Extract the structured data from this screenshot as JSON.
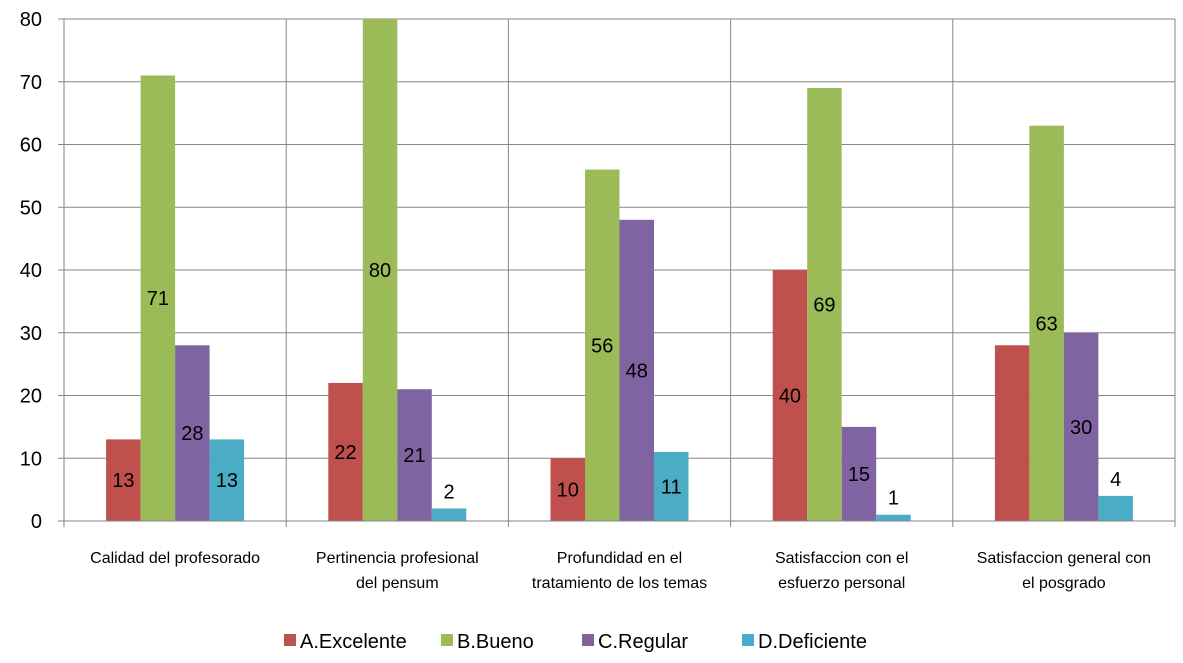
{
  "chart_data": {
    "type": "bar",
    "title": "",
    "xlabel": "",
    "ylabel": "",
    "ylim": [
      0,
      80
    ],
    "yticks": [
      0,
      10,
      20,
      30,
      40,
      50,
      60,
      70,
      80
    ],
    "grid": true,
    "legend_position": "bottom",
    "categories": [
      [
        "Calidad del profesorado"
      ],
      [
        "Pertinencia profesional",
        "del pensum"
      ],
      [
        "Profundidad en el",
        "tratamiento de los temas"
      ],
      [
        "Satisfaccion con el",
        "esfuerzo personal"
      ],
      [
        "Satisfaccion general con",
        "el posgrado"
      ]
    ],
    "series": [
      {
        "name": "A.Excelente",
        "color": "#c0504d",
        "values": [
          13,
          22,
          10,
          40,
          28
        ],
        "labels": [
          "13",
          "22",
          "10",
          "40",
          "28"
        ]
      },
      {
        "name": "B.Bueno",
        "color": "#9bbb59",
        "values": [
          71,
          80,
          56,
          69,
          63
        ],
        "labels": [
          "71",
          "80",
          "56",
          "69",
          "63"
        ]
      },
      {
        "name": "C.Regular",
        "color": "#8064a2",
        "values": [
          28,
          21,
          48,
          15,
          30
        ],
        "labels": [
          "28",
          "21",
          "48",
          "15",
          "30"
        ]
      },
      {
        "name": "D.Deficiente",
        "color": "#4bacc6",
        "values": [
          13,
          2,
          11,
          1,
          4
        ],
        "labels": [
          "13",
          "2",
          "11",
          "1",
          "4"
        ]
      }
    ],
    "data_labels_shown": [
      [
        true,
        true,
        true,
        true,
        false
      ],
      [
        true,
        true,
        true,
        true,
        true
      ],
      [
        true,
        true,
        true,
        true,
        true
      ],
      [
        true,
        true,
        true,
        true,
        true
      ]
    ]
  }
}
